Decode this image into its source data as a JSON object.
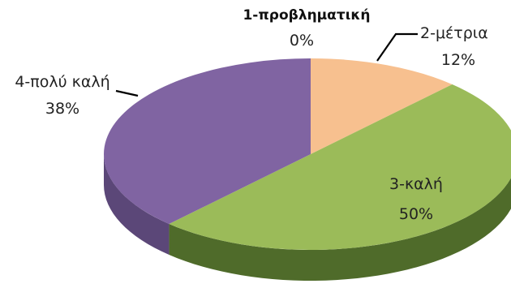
{
  "chart_data": {
    "type": "pie",
    "style": "3d",
    "title": "",
    "categories": [
      "1-προβληματική",
      "2-μέτρια",
      "3-καλή",
      "4-πολύ καλή"
    ],
    "values": [
      0,
      12,
      50,
      38
    ],
    "labels": [
      "0%",
      "12%",
      "50%",
      "38%"
    ],
    "colors": [
      "#e0e0e0",
      "#f7c08f",
      "#9bbb59",
      "#8064a2"
    ],
    "side_colors": [
      "#b0b0b0",
      "#c99a6e",
      "#4f6b2a",
      "#5b4778"
    ],
    "legend": "none",
    "label_mode": "category and percent"
  }
}
